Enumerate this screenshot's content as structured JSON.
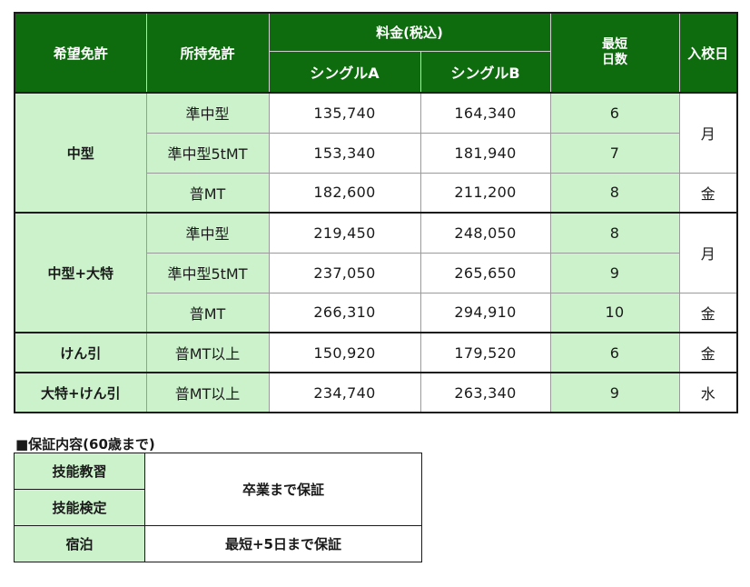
{
  "headers": {
    "desired_license": "希望免許",
    "held_license": "所持免許",
    "fee_tax_incl": "料金(税込)",
    "single_a": "シングルA",
    "single_b": "シングルB",
    "shortest_days_line1": "最短",
    "shortest_days_line2": "日数",
    "enroll_day": "入校日"
  },
  "groups": [
    {
      "desired": "中型",
      "rows": [
        {
          "held": "準中型",
          "a": "135,740",
          "b": "164,340",
          "days": "6"
        },
        {
          "held": "準中型5tMT",
          "a": "153,340",
          "b": "181,940",
          "days": "7"
        },
        {
          "held": "普MT",
          "a": "182,600",
          "b": "211,200",
          "days": "8"
        }
      ],
      "enroll": [
        "月",
        "金"
      ]
    },
    {
      "desired": "中型+大特",
      "rows": [
        {
          "held": "準中型",
          "a": "219,450",
          "b": "248,050",
          "days": "8"
        },
        {
          "held": "準中型5tMT",
          "a": "237,050",
          "b": "265,650",
          "days": "9"
        },
        {
          "held": "普MT",
          "a": "266,310",
          "b": "294,910",
          "days": "10"
        }
      ],
      "enroll": [
        "月",
        "金"
      ]
    },
    {
      "desired": "けん引",
      "rows": [
        {
          "held": "普MT以上",
          "a": "150,920",
          "b": "179,520",
          "days": "6"
        }
      ],
      "enroll": [
        "金"
      ]
    },
    {
      "desired": "大特+けん引",
      "rows": [
        {
          "held": "普MT以上",
          "a": "234,740",
          "b": "263,340",
          "days": "9"
        }
      ],
      "enroll": [
        "水"
      ]
    }
  ],
  "guarantee": {
    "title": "■保証内容(60歳まで)",
    "items": [
      {
        "label": "技能教習"
      },
      {
        "label": "技能検定"
      },
      {
        "label": "宿泊"
      }
    ],
    "value_skills": "卒業まで保証",
    "value_lodging": "最短+5日まで保証"
  }
}
